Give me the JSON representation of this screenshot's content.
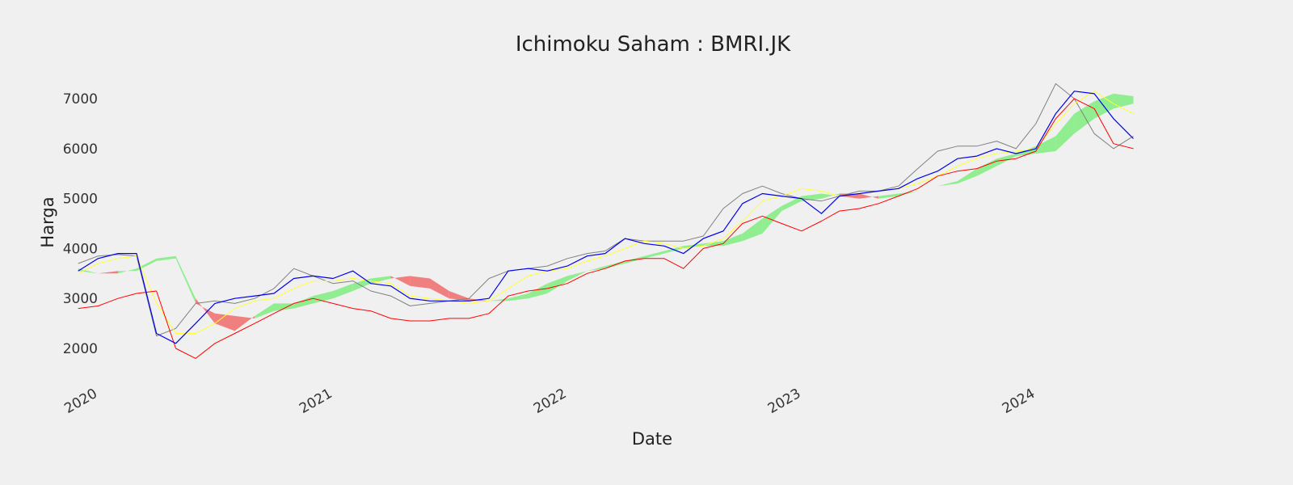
{
  "chart_data": {
    "type": "line",
    "title": "Ichimoku Saham : BMRI.JK",
    "xlabel": "Date",
    "ylabel": "Harga",
    "xlim": [
      "2019-11-20",
      "2024-12-10"
    ],
    "ylim": [
      1450,
      7600
    ],
    "grid": false,
    "legend": "none",
    "x_ticks": [
      {
        "date": "2020-01-01",
        "label": "2020"
      },
      {
        "date": "2021-01-01",
        "label": "2021"
      },
      {
        "date": "2022-01-01",
        "label": "2022"
      },
      {
        "date": "2023-01-01",
        "label": "2023"
      },
      {
        "date": "2024-01-01",
        "label": "2024"
      }
    ],
    "y_ticks": [
      2000,
      3000,
      4000,
      5000,
      6000,
      7000
    ],
    "colors": {
      "background": "#f0f0f0",
      "close": "#0000ee",
      "tenkan_sen": "#ffff33",
      "kijun_sen": "#808080",
      "senkou_span": "#ff0000",
      "chikou_span": "#ff0000",
      "cloud_bullish": "#90ee90",
      "cloud_bearish": "#f08080"
    },
    "x": [
      "2019-12-01",
      "2020-01-01",
      "2020-02-01",
      "2020-03-01",
      "2020-04-01",
      "2020-05-01",
      "2020-06-01",
      "2020-07-01",
      "2020-08-01",
      "2020-09-01",
      "2020-10-01",
      "2020-11-01",
      "2020-12-01",
      "2021-01-01",
      "2021-02-01",
      "2021-03-01",
      "2021-04-01",
      "2021-05-01",
      "2021-06-01",
      "2021-07-01",
      "2021-08-01",
      "2021-09-01",
      "2021-10-01",
      "2021-11-01",
      "2021-12-01",
      "2022-01-01",
      "2022-02-01",
      "2022-03-01",
      "2022-04-01",
      "2022-05-01",
      "2022-06-01",
      "2022-07-01",
      "2022-08-01",
      "2022-09-01",
      "2022-10-01",
      "2022-11-01",
      "2022-12-01",
      "2023-01-01",
      "2023-02-01",
      "2023-03-01",
      "2023-04-01",
      "2023-05-01",
      "2023-06-01",
      "2023-07-01",
      "2023-08-01",
      "2023-09-01",
      "2023-10-01",
      "2023-11-01",
      "2023-12-01",
      "2024-01-01",
      "2024-02-01",
      "2024-03-01",
      "2024-04-01",
      "2024-05-01",
      "2024-06-01"
    ],
    "series": [
      {
        "key": "close",
        "values": [
          3550,
          3800,
          3900,
          3900,
          2300,
          2100,
          2500,
          2900,
          3000,
          3050,
          3100,
          3400,
          3450,
          3400,
          3550,
          3300,
          3250,
          3000,
          2950,
          2950,
          2950,
          3000,
          3550,
          3600,
          3550,
          3650,
          3850,
          3900,
          4200,
          4100,
          4050,
          3900,
          4200,
          4350,
          4900,
          5100,
          5050,
          5000,
          4700,
          5050,
          5100,
          5150,
          5200,
          5400,
          5550,
          5800,
          5850,
          6000,
          5900,
          6000,
          6700,
          7150,
          7100,
          6600,
          6200
        ]
      },
      {
        "key": "tenkan_sen",
        "values": [
          3500,
          3700,
          3800,
          3850,
          2900,
          2300,
          2300,
          2500,
          2800,
          2950,
          3000,
          3200,
          3350,
          3350,
          3400,
          3350,
          3300,
          3050,
          3000,
          2950,
          2900,
          2950,
          3200,
          3450,
          3550,
          3600,
          3750,
          3850,
          4000,
          4150,
          4100,
          4000,
          4050,
          4200,
          4550,
          4950,
          5050,
          5200,
          5150,
          5050,
          5100,
          5150,
          5200,
          5300,
          5450,
          5650,
          5800,
          5900,
          5950,
          6000,
          6500,
          6900,
          7150,
          6900,
          6700
        ]
      },
      {
        "key": "kijun_sen",
        "values": [
          3700,
          3850,
          3880,
          3850,
          2250,
          2400,
          2900,
          2950,
          2900,
          3000,
          3200,
          3600,
          3450,
          3300,
          3350,
          3150,
          3050,
          2850,
          2900,
          2950,
          3000,
          3400,
          3550,
          3600,
          3650,
          3800,
          3900,
          3950,
          4200,
          4150,
          4150,
          4150,
          4250,
          4800,
          5100,
          5250,
          5100,
          5000,
          4950,
          5050,
          5150,
          5150,
          5250,
          5600,
          5950,
          6050,
          6050,
          6150,
          6000,
          6500,
          7300,
          7000,
          6300,
          6000,
          6250
        ]
      },
      {
        "key": "chikou_span",
        "values": [
          2800,
          2850,
          3000,
          3100,
          3150,
          2000,
          1800,
          2100,
          2300,
          2500,
          2700,
          2900,
          3000,
          2900,
          2800,
          2750,
          2600,
          2550,
          2550,
          2600,
          2600,
          2700,
          3050,
          3150,
          3200,
          3300,
          3500,
          3600,
          3750,
          3800,
          3800,
          3600,
          4000,
          4100,
          4500,
          4650,
          4500,
          4350,
          4550,
          4750,
          4800,
          4900,
          5050,
          5200,
          5450,
          5550,
          5600,
          5750,
          5800,
          5950,
          6600,
          7000,
          6800,
          6100,
          6000
        ]
      },
      {
        "key": "senkou_span_a",
        "values": [
          3600,
          3500,
          3500,
          3600,
          3800,
          3850,
          3000,
          2500,
          2350,
          2650,
          2900,
          2900,
          3050,
          3150,
          3300,
          3400,
          3450,
          3250,
          3200,
          3000,
          2950,
          2950,
          3000,
          3100,
          3300,
          3450,
          3550,
          3650,
          3750,
          3850,
          3950,
          4050,
          4100,
          4150,
          4300,
          4600,
          4850,
          5050,
          5100,
          5050,
          5000,
          5050,
          5100,
          5150,
          5250,
          5350,
          5600,
          5800,
          5900,
          6050,
          6250,
          6700,
          6950,
          7100,
          7050
        ]
      },
      {
        "key": "senkou_span_b",
        "values": [
          3550,
          3500,
          3550,
          3550,
          3750,
          3800,
          2900,
          2700,
          2650,
          2600,
          2750,
          2800,
          2900,
          3000,
          3150,
          3300,
          3400,
          3450,
          3400,
          3150,
          3000,
          2950,
          2950,
          3000,
          3100,
          3350,
          3550,
          3600,
          3700,
          3800,
          3900,
          4000,
          4050,
          4050,
          4150,
          4300,
          4750,
          4950,
          5000,
          5100,
          5100,
          5000,
          5050,
          5150,
          5250,
          5300,
          5450,
          5650,
          5850,
          5900,
          5950,
          6300,
          6600,
          6800,
          6900
        ]
      }
    ]
  }
}
